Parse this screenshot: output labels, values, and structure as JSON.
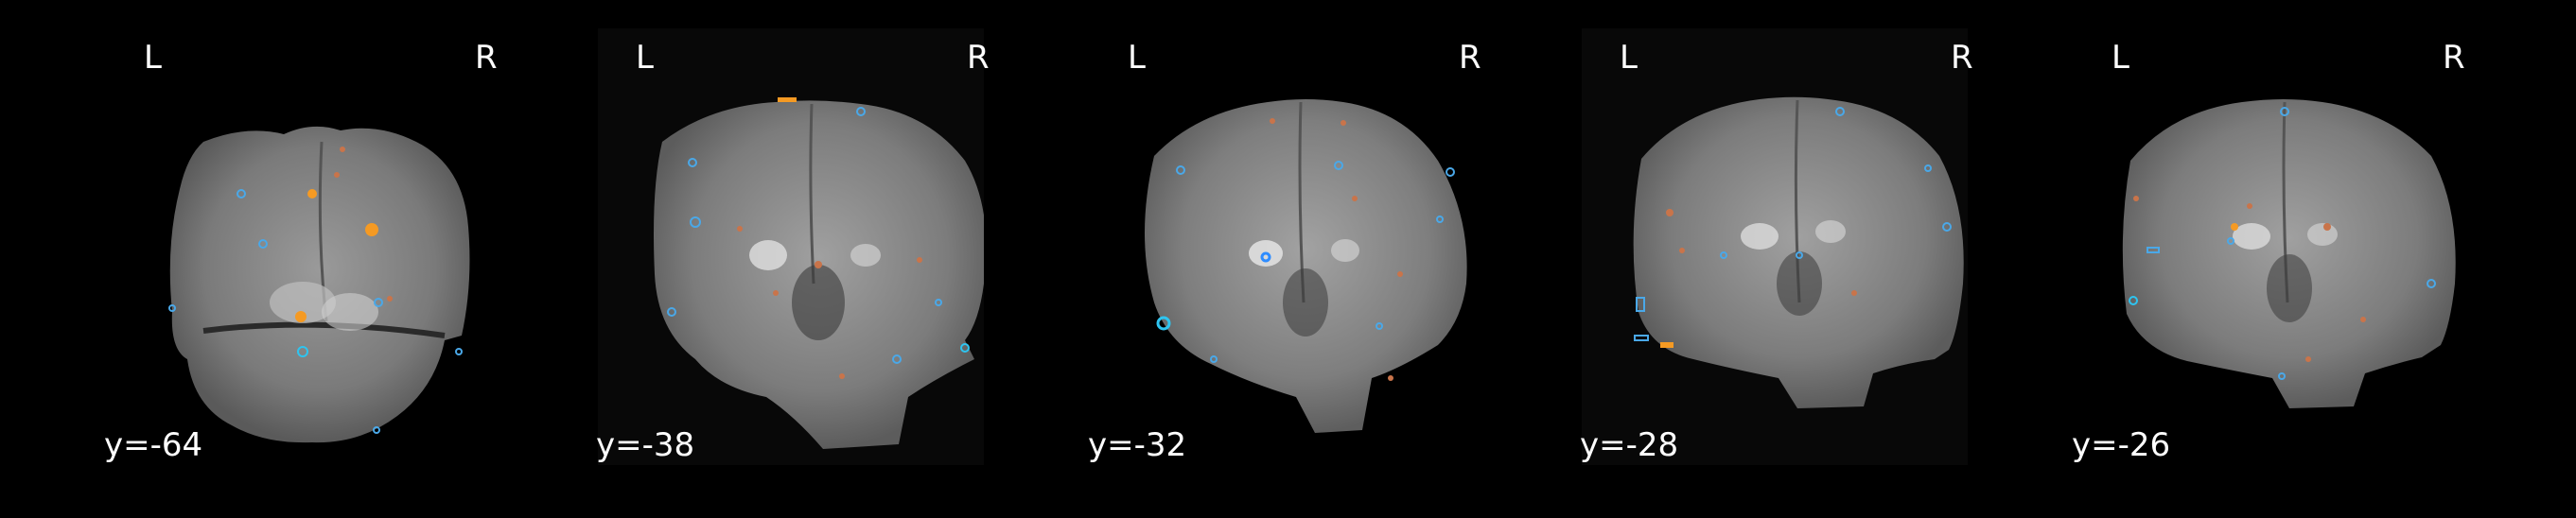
{
  "figure": {
    "background_color": "#000000",
    "overlay_colors": {
      "positive": "#f59a23",
      "positive_dim": "#c9744a",
      "negative": "#4aa8e8",
      "negative_bright": "#2ec4f0"
    },
    "slices": [
      {
        "orientation_left": "L",
        "orientation_right": "R",
        "coordinate": "y=-64"
      },
      {
        "orientation_left": "L",
        "orientation_right": "R",
        "coordinate": "y=-38"
      },
      {
        "orientation_left": "L",
        "orientation_right": "R",
        "coordinate": "y=-32"
      },
      {
        "orientation_left": "L",
        "orientation_right": "R",
        "coordinate": "y=-28"
      },
      {
        "orientation_left": "L",
        "orientation_right": "R",
        "coordinate": "y=-26"
      }
    ]
  }
}
